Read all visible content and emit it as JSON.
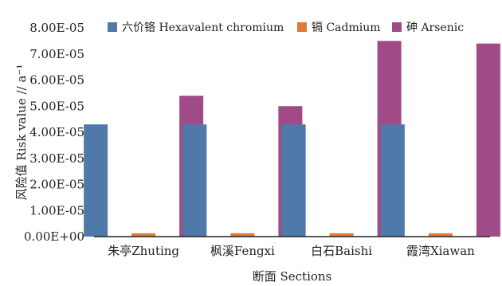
{
  "chart_data": {
    "type": "bar",
    "title": "",
    "xlabel": "断面 Sections",
    "ylabel": "风险值 Risk value // a⁻¹",
    "ylim": [
      0,
      8e-05
    ],
    "yticks": [
      "0.00E+00",
      "1.00E-05",
      "2.00E-05",
      "3.00E-05",
      "4.00E-05",
      "5.00E-05",
      "6.00E-05",
      "7.00E-05",
      "8.00E-05"
    ],
    "categories": [
      "朱亭Zhuting",
      "枫溪Fengxi",
      "白石Baishi",
      "霞湾Xiawan"
    ],
    "series": [
      {
        "name": "六价铬 Hexavalent chromium",
        "color": "#4f79a8",
        "values": [
          4.3e-05,
          4.3e-05,
          4.3e-05,
          4.3e-05
        ]
      },
      {
        "name": "镉 Cadmium",
        "color": "#e07b35",
        "values": [
          1.3e-06,
          1.3e-06,
          1.3e-06,
          1.3e-06
        ]
      },
      {
        "name": "砷 Arsenic",
        "color": "#a04a88",
        "values": [
          5.4e-05,
          5e-05,
          7.5e-05,
          7.4e-05
        ]
      }
    ],
    "legend_position": "top",
    "grid": false
  }
}
